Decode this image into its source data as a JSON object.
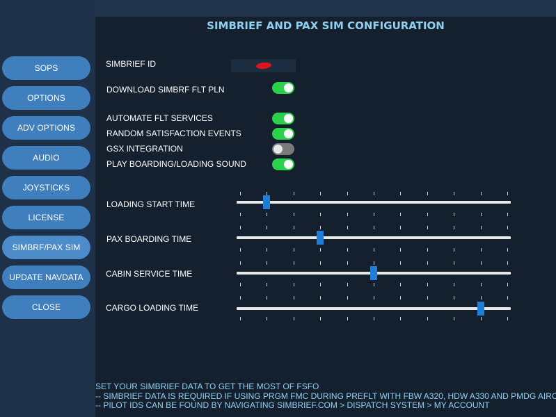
{
  "header": {
    "title": "SIMBRIEF AND PAX SIM CONFIGURATION"
  },
  "sidebar": {
    "items": [
      {
        "label": "SOPS"
      },
      {
        "label": "OPTIONS"
      },
      {
        "label": "ADV OPTIONS"
      },
      {
        "label": "AUDIO"
      },
      {
        "label": "JOYSTICKS"
      },
      {
        "label": "LICENSE"
      },
      {
        "label": "SIMBRF/PAX SIM"
      },
      {
        "label": "UPDATE NAVDATA"
      },
      {
        "label": "CLOSE"
      }
    ],
    "active_index": 6
  },
  "settings": {
    "simbrief_id_label": "SIMBRIEF ID",
    "download_label": "DOWNLOAD SIMBRF FLT PLN",
    "download_on": true,
    "toggles": [
      {
        "label": "AUTOMATE FLT SERVICES",
        "on": true
      },
      {
        "label": "RANDOM SATISFACTION EVENTS",
        "on": true
      },
      {
        "label": "GSX INTEGRATION",
        "on": false
      },
      {
        "label": "PLAY BOARDING/LOADING SOUND",
        "on": true
      }
    ]
  },
  "sliders": [
    {
      "label": "LOADING START TIME",
      "value": 0.11
    },
    {
      "label": "PAX BOARDING TIME",
      "value": 0.305
    },
    {
      "label": "CABIN SERVICE TIME",
      "value": 0.5
    },
    {
      "label": "CARGO LOADING TIME",
      "value": 0.89
    }
  ],
  "footer": {
    "line1": "SET YOUR SIMBRIEF DATA TO GET THE MOST OF FSFO",
    "line2": " -- SIMBRIEF DATA IS REQUIRED IF USING PRGM FMC DURING PREFLT WITH FBW A320, HDW A330 AND PMDG AIRCRAFT",
    "line3": " -- PILOT IDS CAN BE FOUND BY NAVIGATING SIMBRIEF.COM > DISPATCH SYSTEM > MY ACCOUNT"
  },
  "colors": {
    "accent": "#8fd0f0",
    "button": "#3f7fbd",
    "toggle_on": "#2bd14a",
    "toggle_off": "#7a7a7a",
    "thumb": "#1f7fd6"
  }
}
